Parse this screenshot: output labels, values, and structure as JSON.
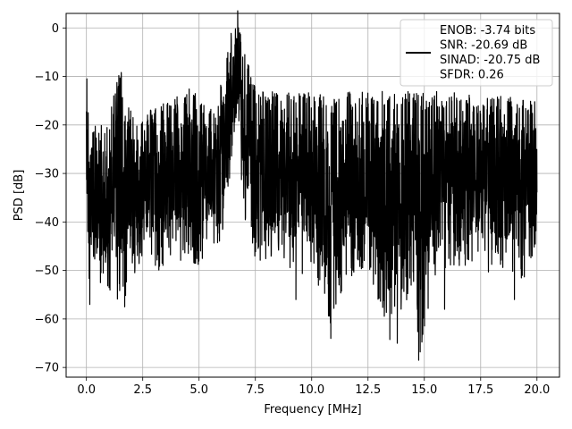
{
  "chart_data": {
    "type": "line",
    "title": "",
    "xlabel": "Frequency [MHz]",
    "ylabel": "PSD [dB]",
    "xlim": [
      -0.9,
      21.0
    ],
    "ylim": [
      -72,
      3
    ],
    "xticks": [
      0.0,
      2.5,
      5.0,
      7.5,
      10.0,
      12.5,
      15.0,
      17.5,
      20.0
    ],
    "xtick_labels": [
      "0.0",
      "2.5",
      "5.0",
      "7.5",
      "10.0",
      "12.5",
      "15.0",
      "17.5",
      "20.0"
    ],
    "yticks": [
      0,
      -10,
      -20,
      -30,
      -40,
      -50,
      -60,
      -70
    ],
    "ytick_labels": [
      "0",
      "−10",
      "−20",
      "−30",
      "−40",
      "−50",
      "−60",
      "−70"
    ],
    "grid": true,
    "legend_position": "top-right",
    "series": [
      {
        "name": "ENOB: -3.74 bits",
        "legend_lines": [
          "ENOB: -3.74 bits",
          "SNR: -20.69 dB",
          "SINAD: -20.75 dB",
          "SFDR: 0.26"
        ],
        "color": "#000000",
        "x_range": [
          0.0,
          20.0
        ],
        "envelope": [
          {
            "x": 0.0,
            "upper": -10.5,
            "lower": -35
          },
          {
            "x": 0.1,
            "upper": -22,
            "lower": -54
          },
          {
            "x": 0.3,
            "upper": -24,
            "lower": -50
          },
          {
            "x": 0.5,
            "upper": -24,
            "lower": -53
          },
          {
            "x": 1.0,
            "upper": -23,
            "lower": -54
          },
          {
            "x": 1.55,
            "upper": -10,
            "lower": -57.5
          },
          {
            "x": 2.0,
            "upper": -21,
            "lower": -52
          },
          {
            "x": 2.5,
            "upper": -22,
            "lower": -50
          },
          {
            "x": 3.0,
            "upper": -20,
            "lower": -51
          },
          {
            "x": 3.5,
            "upper": -19,
            "lower": -49
          },
          {
            "x": 4.0,
            "upper": -18,
            "lower": -49
          },
          {
            "x": 4.5,
            "upper": -16,
            "lower": -48
          },
          {
            "x": 5.0,
            "upper": -18,
            "lower": -49
          },
          {
            "x": 5.5,
            "upper": -19,
            "lower": -47
          },
          {
            "x": 6.0,
            "upper": -15,
            "lower": -44
          },
          {
            "x": 6.4,
            "upper": -5,
            "lower": -30
          },
          {
            "x": 6.7,
            "upper": 0,
            "lower": -22
          },
          {
            "x": 7.0,
            "upper": -8,
            "lower": -40
          },
          {
            "x": 7.5,
            "upper": -16,
            "lower": -49
          },
          {
            "x": 8.0,
            "upper": -17,
            "lower": -48
          },
          {
            "x": 9.0,
            "upper": -17,
            "lower": -50
          },
          {
            "x": 10.0,
            "upper": -17,
            "lower": -52
          },
          {
            "x": 10.8,
            "upper": -18,
            "lower": -64
          },
          {
            "x": 11.5,
            "upper": -17,
            "lower": -52
          },
          {
            "x": 12.5,
            "upper": -17,
            "lower": -50
          },
          {
            "x": 13.5,
            "upper": -17,
            "lower": -65
          },
          {
            "x": 14.5,
            "upper": -17,
            "lower": -53
          },
          {
            "x": 14.8,
            "upper": -17,
            "lower": -68.5
          },
          {
            "x": 15.5,
            "upper": -17,
            "lower": -51
          },
          {
            "x": 16.5,
            "upper": -17,
            "lower": -49
          },
          {
            "x": 17.5,
            "upper": -18,
            "lower": -50
          },
          {
            "x": 18.5,
            "upper": -18,
            "lower": -51
          },
          {
            "x": 19.5,
            "upper": -19,
            "lower": -52
          },
          {
            "x": 20.0,
            "upper": -19,
            "lower": -45
          }
        ],
        "peaks": [
          {
            "x": 0.02,
            "y": -10.5
          },
          {
            "x": 1.55,
            "y": -10
          },
          {
            "x": 6.75,
            "y": 0
          },
          {
            "x": 4.8,
            "y": -16
          },
          {
            "x": 6.0,
            "y": -15
          }
        ],
        "dips": [
          {
            "x": 0.15,
            "y": -57
          },
          {
            "x": 1.7,
            "y": -57.5
          },
          {
            "x": 10.85,
            "y": -64
          },
          {
            "x": 13.8,
            "y": -65
          },
          {
            "x": 14.75,
            "y": -68.5
          },
          {
            "x": 9.3,
            "y": -56
          },
          {
            "x": 15.9,
            "y": -58
          },
          {
            "x": 19.0,
            "y": -56
          }
        ]
      }
    ]
  }
}
